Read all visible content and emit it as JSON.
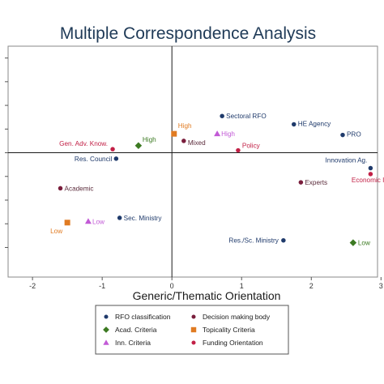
{
  "chart_data": {
    "type": "scatter",
    "title": "Multiple Correspondence Analysis",
    "xlabel": "Generic/Thematic Orientation",
    "ylabel": "",
    "xlim": [
      -2.35,
      2.95
    ],
    "ylim": [
      -1.05,
      0.9
    ],
    "x_ticks": [
      -2,
      -1,
      0,
      1,
      2,
      3
    ],
    "x_tick_labels": [
      "-2",
      "-1",
      "0",
      "1",
      "2",
      "3"
    ],
    "y_ticks": [
      -0.8,
      -0.6,
      -0.4,
      -0.2,
      0,
      0.2,
      0.4,
      0.6,
      0.8
    ],
    "grid": false,
    "reference_lines": {
      "x": 0,
      "y": 0
    },
    "legend_position": "bottom",
    "series": [
      {
        "name": "RFO classification",
        "color": "#1f3a6b",
        "marker": "circle",
        "label_color": "#1f3a6b",
        "points": [
          {
            "label": "Sectoral RFO",
            "x": 0.72,
            "y": 0.31
          },
          {
            "label": "HE Agency",
            "x": 1.75,
            "y": 0.24
          },
          {
            "label": "PRO",
            "x": 2.45,
            "y": 0.15
          },
          {
            "label": "Res. Council",
            "x": -0.8,
            "y": -0.05
          },
          {
            "label": "Innovation Ag.",
            "x": 2.85,
            "y": -0.13
          },
          {
            "label": "Sec. Ministry",
            "x": -0.75,
            "y": -0.55
          },
          {
            "label": "Res./Sc. Ministry",
            "x": 1.6,
            "y": -0.74
          }
        ]
      },
      {
        "name": "Decision making body",
        "color": "#7a1e3c",
        "marker": "circle",
        "label_color": "#5a2a3a",
        "points": [
          {
            "label": "Mixed",
            "x": 0.17,
            "y": 0.1
          },
          {
            "label": "Academic",
            "x": -1.6,
            "y": -0.3
          },
          {
            "label": "Experts",
            "x": 1.85,
            "y": -0.25
          }
        ]
      },
      {
        "name": "Acad. Criteria",
        "color": "#3c7a22",
        "marker": "diamond",
        "label_color": "#3c7a22",
        "points": [
          {
            "label": "High",
            "x": -0.48,
            "y": 0.06
          },
          {
            "label": "Low",
            "x": 2.6,
            "y": -0.76
          }
        ]
      },
      {
        "name": "Topicality Criteria",
        "color": "#e07b22",
        "marker": "square",
        "label_color": "#e07b22",
        "points": [
          {
            "label": "High",
            "x": 0.03,
            "y": 0.16
          },
          {
            "label": "Low",
            "x": -1.5,
            "y": -0.59
          }
        ]
      },
      {
        "name": "Inn. Criteria",
        "color": "#c25ad6",
        "marker": "triangle",
        "label_color": "#c25ad6",
        "points": [
          {
            "label": "High",
            "x": 0.65,
            "y": 0.16
          },
          {
            "label": "Low",
            "x": -1.2,
            "y": -0.58
          }
        ]
      },
      {
        "name": "Funding Orientation",
        "color": "#c22046",
        "marker": "circle",
        "label_color": "#c22046",
        "points": [
          {
            "label": "Gen. Adv. Know.",
            "x": -0.85,
            "y": 0.03
          },
          {
            "label": "Policy",
            "x": 0.95,
            "y": 0.02
          },
          {
            "label": "Economic In",
            "x": 2.85,
            "y": -0.18
          }
        ]
      }
    ]
  }
}
